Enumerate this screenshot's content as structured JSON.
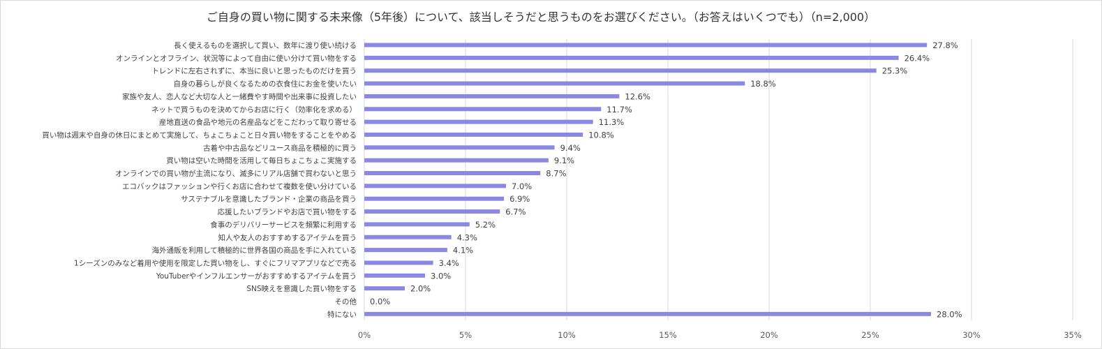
{
  "chart_data": {
    "type": "bar",
    "orientation": "horizontal",
    "title": "ご自身の買い物に関する未来像（5年後）について、該当しそうだと思うものをお選びください。（お答えはいくつでも）（n=2,000）",
    "categories": [
      "長く使えるものを選択して買い、数年に渡り使い続ける",
      "オンラインとオフライン、状況等によって自由に使い分けて買い物をする",
      "トレンドに左右されずに、本当に良いと思ったものだけを買う",
      "自身の暮らしが良くなるための衣食住にお金を使いたい",
      "家族や友人、恋人など大切な人と一緒費やす時間や出来事に投資したい",
      "ネットで買うものを決めてからお店に行く（効率化を求める）",
      "産地直送の食品や地元の名産品などをこだわって取り寄せる",
      "買い物は週末や自身の休日にまとめて実施して、ちょこちょこと日々買い物をすることをやめる",
      "古着や中古品などリユース商品を積極的に買う",
      "買い物は空いた時間を活用して毎日ちょこちょこ実施する",
      "オンラインでの買い物が主流になり、滅多にリアル店舗で買わないと思う",
      "エコバックはファッションや行くお店に合わせて複数を使い分けている",
      "サステナブルを意識したブランド・企業の商品を買う",
      "応援したいブランドやお店で買い物をする",
      "食事のデリバリーサービスを頻繁に利用する",
      "知人や友人のおすすめするアイテムを買う",
      "海外通販を利用して積極的に世界各国の商品を手に入れている",
      "1シーズンのみなど着用や使用を限定した買い物をし、すぐにフリマアプリなどで売る",
      "YouTuberやインフルエンサーがおすすめするアイテムを買う",
      "SNS映えを意識した買い物をする",
      "その他",
      "特にない"
    ],
    "values": [
      27.8,
      26.4,
      25.3,
      18.8,
      12.6,
      11.7,
      11.3,
      10.8,
      9.4,
      9.1,
      8.7,
      7.0,
      6.9,
      6.7,
      5.2,
      4.3,
      4.1,
      3.4,
      3.0,
      2.0,
      0.0,
      28.0
    ],
    "value_labels": [
      "27.8%",
      "26.4%",
      "25.3%",
      "18.8%",
      "12.6%",
      "11.7%",
      "11.3%",
      "10.8%",
      "9.4%",
      "9.1%",
      "8.7%",
      "7.0%",
      "6.9%",
      "6.7%",
      "5.2%",
      "4.3%",
      "4.1%",
      "3.4%",
      "3.0%",
      "2.0%",
      "0.0%",
      "28.0%"
    ],
    "xlim": [
      0,
      35
    ],
    "xticks": [
      0,
      5,
      10,
      15,
      20,
      25,
      30,
      35
    ],
    "xtick_labels": [
      "0%",
      "5%",
      "10%",
      "15%",
      "20%",
      "25%",
      "30%",
      "35%"
    ],
    "xlabel": "",
    "ylabel": "",
    "grid": true,
    "legend": "none",
    "bar_color": "#8a88e3"
  }
}
